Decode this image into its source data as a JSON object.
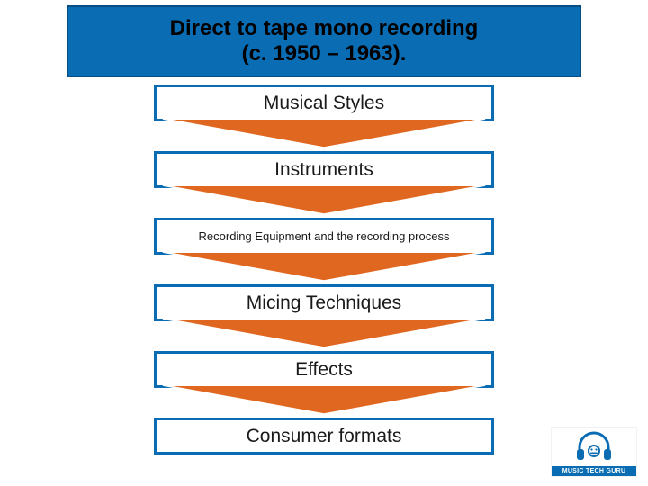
{
  "header": {
    "line1": "Direct to tape mono recording",
    "line2": "(c. 1950 – 1963).",
    "bg": "#0a6cb3",
    "border": "#064e84",
    "color": "#000000",
    "fontsize": 24
  },
  "flow": {
    "step_bg": "#ffffff",
    "step_border": "#0a6cb3",
    "step_border_width": 3,
    "step_text_color": "#1a1a1a",
    "arrow_fill": "#e0671f",
    "arrow_stroke": "#ffffff",
    "step_width": 378,
    "step_height": 41,
    "gap_height": 33,
    "steps": [
      {
        "label": "Musical Styles",
        "fontsize": 21
      },
      {
        "label": "Instruments",
        "fontsize": 21
      },
      {
        "label": "Recording Equipment and the recording process",
        "fontsize": 13
      },
      {
        "label": "Micing Techniques",
        "fontsize": 21
      },
      {
        "label": "Effects",
        "fontsize": 21
      },
      {
        "label": "Consumer formats",
        "fontsize": 21
      }
    ]
  },
  "logo": {
    "bg": "#ffffff",
    "bar_bg": "#0a6cb3",
    "bar_color": "#ffffff",
    "bar_text": "MUSIC TECH GURU",
    "bar_fontsize": 7,
    "icon_color": "#0a6cb3"
  }
}
